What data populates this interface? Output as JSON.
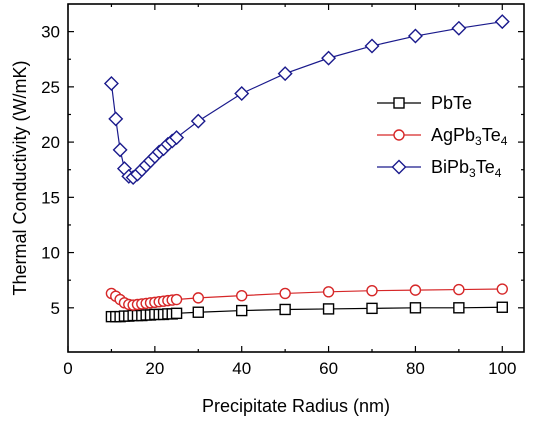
{
  "chart_data": {
    "type": "line",
    "title": "",
    "xlabel": "Precipitate Radius (nm)",
    "ylabel": "Thermal Conductivity (W/mK)",
    "xlim": [
      0,
      105
    ],
    "ylim": [
      1,
      32.5
    ],
    "xticks": [
      0,
      20,
      40,
      60,
      80,
      100
    ],
    "yticks": [
      5,
      10,
      15,
      20,
      25,
      30
    ],
    "grid": false,
    "legend_position": "right-middle",
    "series": [
      {
        "name": "PbTe",
        "legend_parts": [
          {
            "text": "PbTe",
            "sub": false
          }
        ],
        "marker": "square",
        "color": "#000000",
        "x": [
          10,
          11,
          12,
          13,
          14,
          15,
          16,
          17,
          18,
          19,
          20,
          21,
          22,
          23,
          24,
          25,
          30,
          40,
          50,
          60,
          70,
          80,
          90,
          100
        ],
        "y": [
          4.2,
          4.2,
          4.2,
          4.25,
          4.25,
          4.3,
          4.3,
          4.3,
          4.35,
          4.35,
          4.4,
          4.4,
          4.4,
          4.45,
          4.45,
          4.5,
          4.6,
          4.75,
          4.85,
          4.9,
          4.95,
          5.0,
          5.0,
          5.05
        ]
      },
      {
        "name": "AgPb3Te4",
        "legend_parts": [
          {
            "text": "AgPb",
            "sub": false
          },
          {
            "text": "3",
            "sub": true
          },
          {
            "text": "Te",
            "sub": false
          },
          {
            "text": "4",
            "sub": true
          }
        ],
        "marker": "circle",
        "color": "#d62728",
        "x": [
          10,
          11,
          12,
          13,
          14,
          15,
          16,
          17,
          18,
          19,
          20,
          21,
          22,
          23,
          24,
          25,
          30,
          40,
          50,
          60,
          70,
          80,
          90,
          100
        ],
        "y": [
          6.3,
          6.05,
          5.75,
          5.45,
          5.3,
          5.25,
          5.3,
          5.35,
          5.4,
          5.45,
          5.5,
          5.55,
          5.6,
          5.65,
          5.7,
          5.75,
          5.9,
          6.1,
          6.3,
          6.45,
          6.55,
          6.6,
          6.65,
          6.7
        ]
      },
      {
        "name": "BiPb3Te4",
        "legend_parts": [
          {
            "text": "BiPb",
            "sub": false
          },
          {
            "text": "3",
            "sub": true
          },
          {
            "text": "Te",
            "sub": false
          },
          {
            "text": "4",
            "sub": true
          }
        ],
        "marker": "diamond",
        "color": "#1a1a8c",
        "x": [
          10,
          11,
          12,
          13,
          14,
          15,
          16,
          17,
          18,
          19,
          20,
          21,
          22,
          23,
          24,
          25,
          30,
          40,
          50,
          60,
          70,
          80,
          90,
          100
        ],
        "y": [
          25.3,
          22.1,
          19.3,
          17.6,
          16.9,
          16.8,
          17.1,
          17.5,
          17.9,
          18.3,
          18.7,
          19.1,
          19.4,
          19.8,
          20.1,
          20.4,
          21.9,
          24.4,
          26.2,
          27.6,
          28.7,
          29.6,
          30.3,
          30.9
        ]
      }
    ]
  }
}
